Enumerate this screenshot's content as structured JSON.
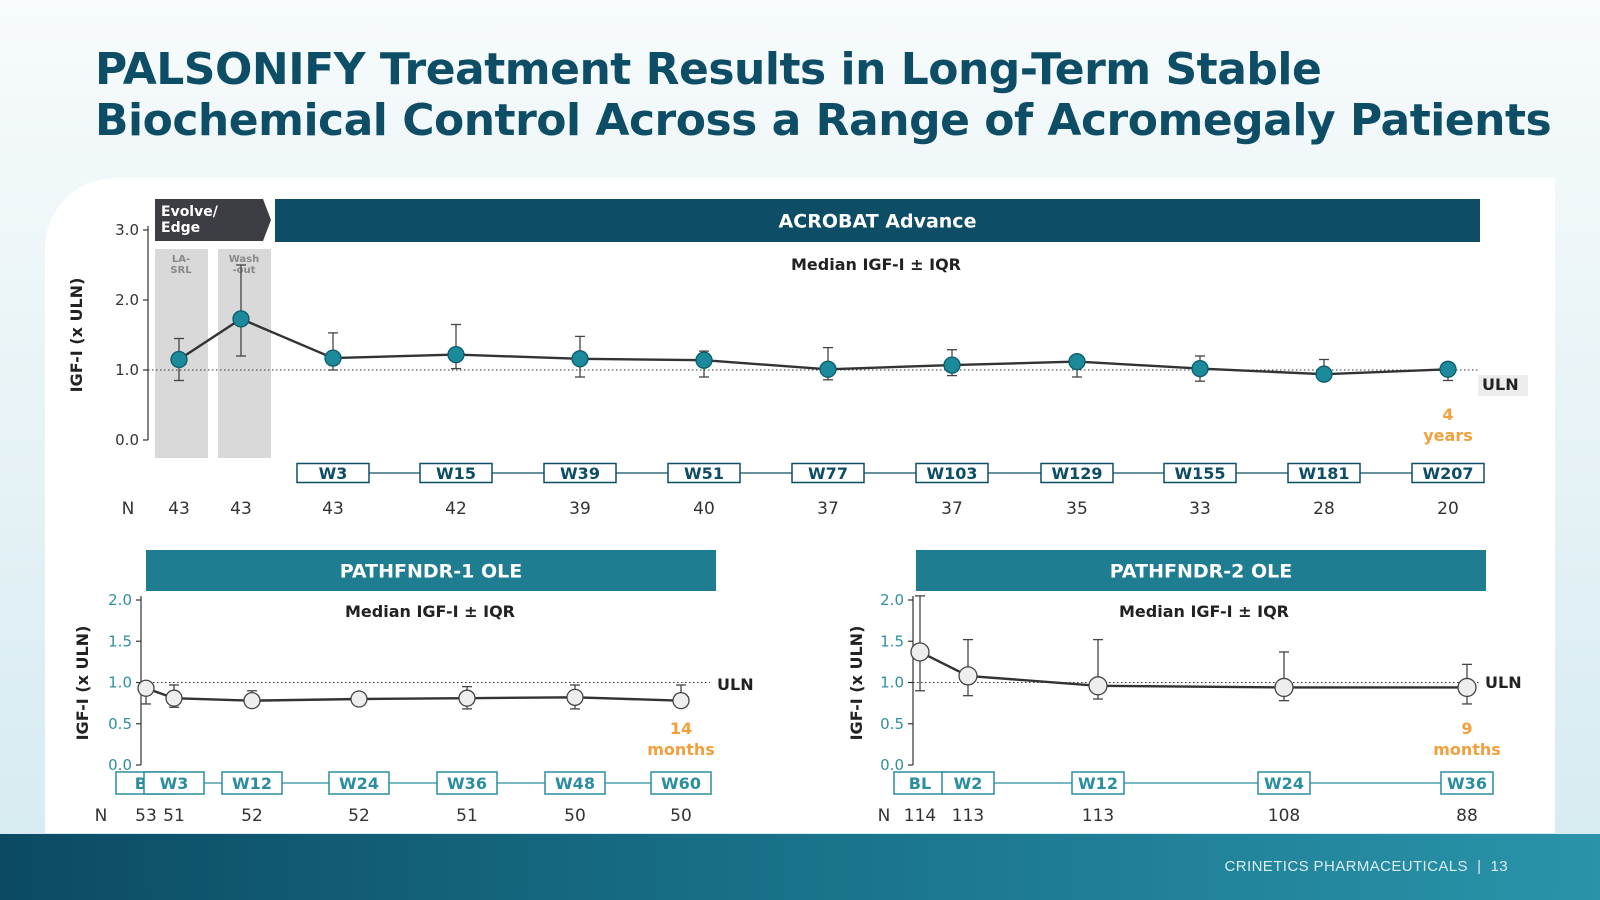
{
  "slide": {
    "title_line1": "PALSONIFY Treatment Results in Long-Term Stable",
    "title_line2": "Biochemical Control Across a Range of Acromegaly Patients",
    "footer_company": "CRINETICS PHARMACEUTICALS",
    "footer_sep": "|",
    "page_number": "13"
  },
  "colors": {
    "navy": "#0d4d66",
    "teal_banner": "#1f7d92",
    "teal_marker": "#1c8a9a",
    "orange": "#f2a03d",
    "evolve_dark": "#3d3d44",
    "phase_gray": "#d9d9d9",
    "line": "#333333",
    "hollow_marker": "#eeeeee"
  },
  "chart_data": [
    {
      "type": "line",
      "banner": "ACROBAT Advance",
      "phase_tag": "Evolve/\nEdge",
      "phase_labels": [
        "LA-\nSRL",
        "Wash\n-out"
      ],
      "subtitle": "Median IGF-I ± IQR",
      "ylabel": "IGF-I (x ULN)",
      "ylim": [
        0,
        3.0
      ],
      "yticks": [
        "0.0",
        "1.0",
        "2.0",
        "3.0"
      ],
      "reference_line": {
        "y": 1.0,
        "label": "ULN"
      },
      "duration_note": "4\nyears",
      "n_label": "N",
      "points": [
        {
          "label": "",
          "median": 1.15,
          "q1": 0.85,
          "q3": 1.45,
          "n": "43"
        },
        {
          "label": "",
          "median": 1.73,
          "q1": 1.2,
          "q3": 2.5,
          "n": "43"
        },
        {
          "label": "W3",
          "median": 1.17,
          "q1": 1.0,
          "q3": 1.53,
          "n": "43"
        },
        {
          "label": "W15",
          "median": 1.22,
          "q1": 1.02,
          "q3": 1.65,
          "n": "42"
        },
        {
          "label": "W39",
          "median": 1.16,
          "q1": 0.9,
          "q3": 1.48,
          "n": "39"
        },
        {
          "label": "W51",
          "median": 1.14,
          "q1": 0.9,
          "q3": 1.27,
          "n": "40"
        },
        {
          "label": "W77",
          "median": 1.01,
          "q1": 0.86,
          "q3": 1.32,
          "n": "37"
        },
        {
          "label": "W103",
          "median": 1.07,
          "q1": 0.92,
          "q3": 1.29,
          "n": "37"
        },
        {
          "label": "W129",
          "median": 1.12,
          "q1": 0.9,
          "q3": 1.2,
          "n": "35"
        },
        {
          "label": "W155",
          "median": 1.02,
          "q1": 0.84,
          "q3": 1.2,
          "n": "33"
        },
        {
          "label": "W181",
          "median": 0.94,
          "q1": 0.86,
          "q3": 1.15,
          "n": "28"
        },
        {
          "label": "W207",
          "median": 1.01,
          "q1": 0.85,
          "q3": 1.09,
          "n": "20"
        }
      ]
    },
    {
      "type": "line",
      "banner": "PATHFNDR-1 OLE",
      "subtitle": "Median IGF-I ± IQR",
      "ylabel": "IGF-I (x ULN)",
      "ylim": [
        0,
        2.0
      ],
      "yticks": [
        "0.0",
        "0.5",
        "1.0",
        "1.5",
        "2.0"
      ],
      "reference_line": {
        "y": 1.0,
        "label": "ULN"
      },
      "duration_note": "14\nmonths",
      "n_label": "N",
      "points": [
        {
          "label": "BL",
          "median": 0.93,
          "q1": 0.74,
          "q3": 0.96,
          "n": "53"
        },
        {
          "label": "W3",
          "median": 0.81,
          "q1": 0.7,
          "q3": 0.97,
          "n": "51"
        },
        {
          "label": "W12",
          "median": 0.78,
          "q1": 0.72,
          "q3": 0.9,
          "n": "52"
        },
        {
          "label": "W24",
          "median": 0.8,
          "q1": 0.74,
          "q3": 0.87,
          "n": "52"
        },
        {
          "label": "W36",
          "median": 0.81,
          "q1": 0.68,
          "q3": 0.95,
          "n": "51"
        },
        {
          "label": "W48",
          "median": 0.82,
          "q1": 0.68,
          "q3": 0.97,
          "n": "50"
        },
        {
          "label": "W60",
          "median": 0.78,
          "q1": 0.72,
          "q3": 0.97,
          "n": "50"
        }
      ]
    },
    {
      "type": "line",
      "banner": "PATHFNDR-2 OLE",
      "subtitle": "Median IGF-I ± IQR",
      "ylabel": "IGF-I (x ULN)",
      "ylim": [
        0,
        2.0
      ],
      "yticks": [
        "0.0",
        "0.5",
        "1.0",
        "1.5",
        "2.0"
      ],
      "reference_line": {
        "y": 1.0,
        "label": "ULN"
      },
      "duration_note": "9\nmonths",
      "n_label": "N",
      "points": [
        {
          "label": "BL",
          "median": 1.37,
          "q1": 0.9,
          "q3": 2.05,
          "n": "114"
        },
        {
          "label": "W2",
          "median": 1.08,
          "q1": 0.84,
          "q3": 1.52,
          "n": "113"
        },
        {
          "label": "W12",
          "median": 0.96,
          "q1": 0.8,
          "q3": 1.52,
          "n": "113"
        },
        {
          "label": "W24",
          "median": 0.94,
          "q1": 0.78,
          "q3": 1.37,
          "n": "108"
        },
        {
          "label": "W36",
          "median": 0.94,
          "q1": 0.74,
          "q3": 1.22,
          "n": "88"
        }
      ]
    }
  ]
}
